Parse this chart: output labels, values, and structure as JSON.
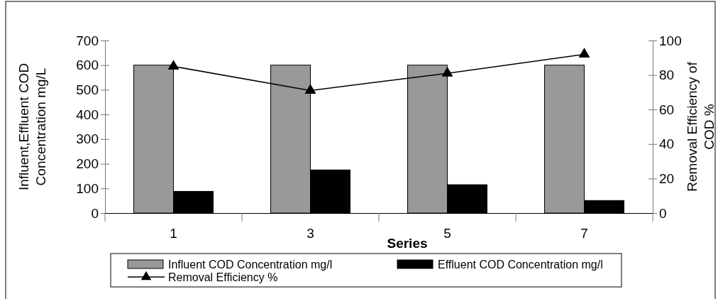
{
  "chart_data": {
    "type": "bar",
    "xlabel": "Series",
    "ylabel": "Influent,Effluent COD Concentration mg/L",
    "y2label": "Removal Efficiency of COD %",
    "categories": [
      "1",
      "3",
      "5",
      "7"
    ],
    "series": [
      {
        "name": "Influent COD Concentration mg/l",
        "color": "#999999",
        "values": [
          600,
          600,
          600,
          600
        ]
      },
      {
        "name": "Effluent COD Concentration mg/l",
        "color": "#000000",
        "values": [
          88,
          175,
          115,
          51
        ]
      },
      {
        "name": "Removal Efficiency %",
        "color": "#000000",
        "type": "line",
        "axis": "y2",
        "marker": "triangle",
        "values": [
          85,
          71,
          81,
          92
        ]
      }
    ],
    "ylim": [
      0,
      700
    ],
    "yticks": [
      0,
      100,
      200,
      300,
      400,
      500,
      600,
      700
    ],
    "y2lim": [
      0,
      100
    ],
    "y2ticks": [
      0,
      20,
      40,
      60,
      80,
      100
    ],
    "grid": false,
    "legend": "bottom"
  }
}
